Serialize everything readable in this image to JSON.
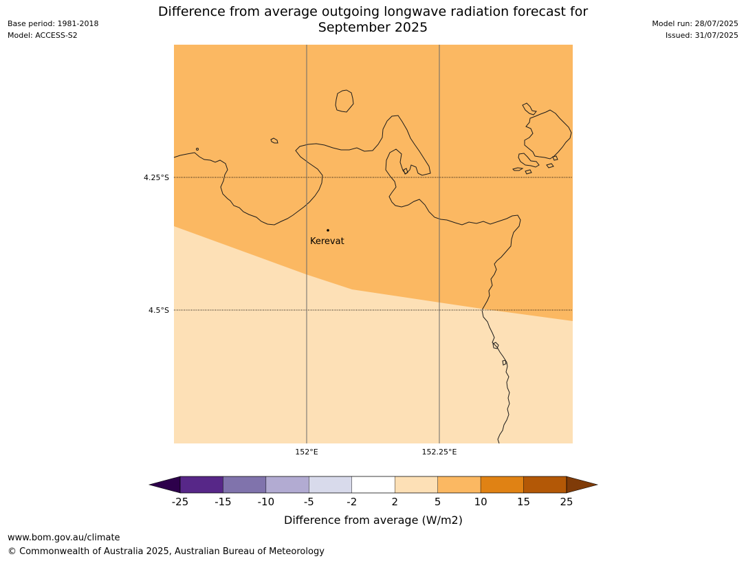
{
  "header": {
    "title_line1": "Difference from average outgoing longwave radiation forecast for",
    "title_line2": "September 2025",
    "base_period": "Base period: 1981-2018",
    "model": "Model: ACCESS-S2",
    "model_run": "Model run: 28/07/2025",
    "issued": "Issued: 31/07/2025"
  },
  "map": {
    "lat_labels": [
      "4.25°S",
      "4.5°S"
    ],
    "lon_labels": [
      "152°E",
      "152.25°E"
    ],
    "place": "Kerevat",
    "region_colors": {
      "upper": "#fbb862",
      "lower": "#fde0b6"
    }
  },
  "legend": {
    "title": "Difference from average (W/m2)",
    "ticks": [
      "-25",
      "-15",
      "-10",
      "-5",
      "-2",
      "2",
      "5",
      "10",
      "15",
      "25"
    ],
    "colors": [
      "#572788",
      "#8073ac",
      "#b2abd2",
      "#d8daeb",
      "#ffffff",
      "#fde0b6",
      "#fbb862",
      "#e08214",
      "#b35806"
    ],
    "low_extend_color": "#2d004b",
    "high_extend_color": "#7f3b08"
  },
  "footer": {
    "url": "www.bom.gov.au/climate",
    "copyright": "© Commonwealth of Australia 2025, Australian Bureau of Meteorology"
  }
}
